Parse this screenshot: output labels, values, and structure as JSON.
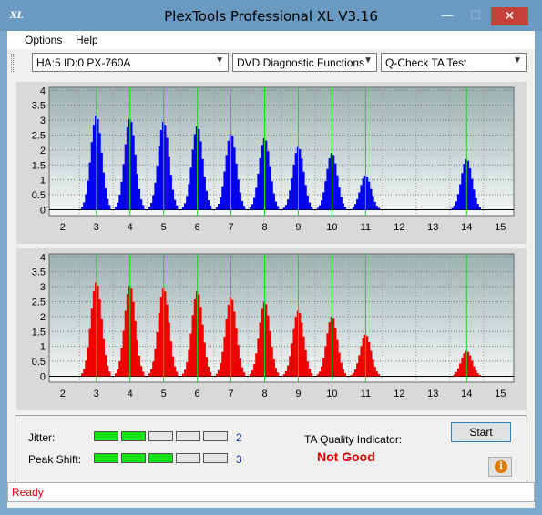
{
  "window": {
    "title": "PlexTools Professional XL V3.16",
    "app_icon_text": "XL",
    "minimize_glyph": "—",
    "maximize_glyph": "☐",
    "close_glyph": "✕"
  },
  "menu": {
    "options": "Options",
    "help": "Help"
  },
  "toolbar": {
    "drive": "HA:5 ID:0  PX-760A",
    "function": "DVD Diagnostic Functions",
    "test": "Q-Check TA Test"
  },
  "chart_data": [
    {
      "type": "bar",
      "name_role": "land/pit jitter histogram (upper)",
      "bar_color": "#0000ee",
      "x_ticks": [
        2,
        3,
        4,
        5,
        6,
        7,
        8,
        9,
        10,
        11,
        12,
        13,
        14,
        15
      ],
      "y_ticks": [
        0,
        0.5,
        1,
        1.5,
        2,
        2.5,
        3,
        3.5,
        4
      ],
      "xlim": [
        1.6,
        15.4
      ],
      "ylim": [
        -0.2,
        4.1
      ],
      "reference_lines_x": [
        3,
        4,
        5,
        6,
        7,
        8,
        9,
        10,
        11,
        14
      ],
      "peaks": [
        {
          "x": 3,
          "height": 3.15,
          "baseline_start": 2.55
        },
        {
          "x": 4,
          "height": 3.05
        },
        {
          "x": 5,
          "height": 2.95
        },
        {
          "x": 6,
          "height": 2.8
        },
        {
          "x": 7,
          "height": 2.55
        },
        {
          "x": 8,
          "height": 2.4
        },
        {
          "x": 9,
          "height": 2.1
        },
        {
          "x": 10,
          "height": 1.9
        },
        {
          "x": 11,
          "height": 1.15
        },
        {
          "x": 14,
          "height": 1.7
        }
      ]
    },
    {
      "type": "bar",
      "name_role": "land/pit jitter histogram (lower)",
      "bar_color": "#ee0000",
      "x_ticks": [
        2,
        3,
        4,
        5,
        6,
        7,
        8,
        9,
        10,
        11,
        12,
        13,
        14,
        15
      ],
      "y_ticks": [
        0,
        0.5,
        1,
        1.5,
        2,
        2.5,
        3,
        3.5,
        4
      ],
      "xlim": [
        1.6,
        15.4
      ],
      "ylim": [
        -0.2,
        4.1
      ],
      "reference_lines_x": [
        3,
        4,
        5,
        6,
        7,
        8,
        9,
        10,
        11,
        14
      ],
      "peaks": [
        {
          "x": 3,
          "height": 3.15
        },
        {
          "x": 4,
          "height": 3.05
        },
        {
          "x": 5,
          "height": 2.95
        },
        {
          "x": 6,
          "height": 2.85
        },
        {
          "x": 7,
          "height": 2.65
        },
        {
          "x": 8,
          "height": 2.5
        },
        {
          "x": 9,
          "height": 2.2
        },
        {
          "x": 10,
          "height": 2.0
        },
        {
          "x": 11,
          "height": 1.4
        },
        {
          "x": 14,
          "height": 0.85
        }
      ]
    }
  ],
  "results": {
    "jitter_label": "Jitter:",
    "jitter_value": "2",
    "jitter_level": 2,
    "peak_shift_label": "Peak Shift:",
    "peak_shift_value": "3",
    "peak_shift_level": 3,
    "segments_total": 5,
    "segment_on_color": "#16e016",
    "ta_label": "TA Quality Indicator:",
    "ta_value": "Not Good",
    "start_label": "Start"
  },
  "status": {
    "text": "Ready"
  }
}
